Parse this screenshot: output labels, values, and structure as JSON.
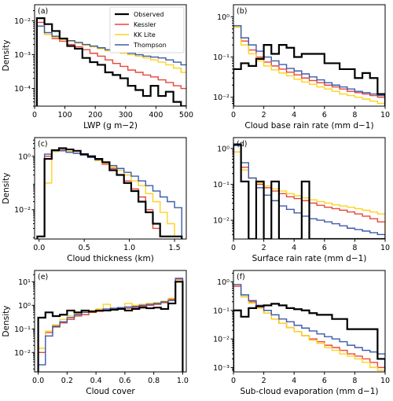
{
  "legend": {
    "entries": [
      {
        "name": "Observed",
        "color": "#000000"
      },
      {
        "name": "Kessler",
        "color": "#e8453c"
      },
      {
        "name": "KK Lite",
        "color": "#ffd21f"
      },
      {
        "name": "Thompson",
        "color": "#3b5bab"
      }
    ],
    "placement": "top-right of panel (a)"
  },
  "chart_data": [
    {
      "panel": "(a)",
      "type": "histogram",
      "xlabel": "LWP (g m−2)",
      "ylabel": "Density",
      "xlim": [
        0,
        500
      ],
      "ylog": true,
      "ylim": [
        3e-05,
        0.03
      ],
      "xticks": [
        0,
        100,
        200,
        300,
        400,
        500
      ],
      "xtick_labels": [
        "0",
        "100",
        "200",
        "300",
        "400",
        "500"
      ],
      "yticks": [
        0.0001,
        0.001,
        0.01
      ],
      "ytick_labels": [
        "10⁻⁴",
        "10⁻³",
        "10⁻²"
      ],
      "bins": [
        20,
        45,
        70,
        95,
        120,
        145,
        170,
        195,
        220,
        245,
        270,
        295,
        320,
        345,
        370,
        395,
        420,
        445,
        470,
        495
      ],
      "series": [
        {
          "name": "Observed",
          "values": [
            0.012,
            0.008,
            0.005,
            0.003,
            0.0018,
            0.0015,
            0.0008,
            0.0006,
            0.0005,
            0.0003,
            0.00025,
            0.0002,
            0.00012,
            9e-05,
            6e-05,
            0.00012,
            6e-05,
            8e-05,
            4e-05,
            3e-05
          ]
        },
        {
          "name": "Kessler",
          "values": [
            0.009,
            0.004,
            0.003,
            0.0025,
            0.002,
            0.0017,
            0.0014,
            0.0011,
            0.0009,
            0.0007,
            0.00055,
            0.00045,
            0.00035,
            0.0003,
            0.00025,
            0.00022,
            0.00018,
            0.00015,
            0.00012,
            0.0001
          ]
        },
        {
          "name": "KK Lite",
          "values": [
            0.007,
            0.004,
            0.0032,
            0.0028,
            0.0025,
            0.0022,
            0.0019,
            0.0017,
            0.0015,
            0.0013,
            0.0012,
            0.0011,
            0.001,
            0.0009,
            0.0008,
            0.0007,
            0.0006,
            0.0005,
            0.0004,
            0.0003
          ]
        },
        {
          "name": "Thompson",
          "values": [
            0.007,
            0.0045,
            0.0035,
            0.003,
            0.0026,
            0.0023,
            0.002,
            0.0018,
            0.0016,
            0.0014,
            0.0013,
            0.0012,
            0.0011,
            0.001,
            0.0009,
            0.00085,
            0.0008,
            0.0007,
            0.0006,
            0.0005
          ]
        }
      ]
    },
    {
      "panel": "(b)",
      "type": "histogram",
      "xlabel": "Cloud base rain rate (mm d−1)",
      "ylabel": "",
      "xlim": [
        0,
        10
      ],
      "ylog": true,
      "ylim": [
        0.006,
        2
      ],
      "xticks": [
        0,
        2,
        4,
        6,
        8,
        10
      ],
      "xtick_labels": [
        "0",
        "2",
        "4",
        "6",
        "8",
        "10"
      ],
      "yticks": [
        0.01,
        0.1,
        1
      ],
      "ytick_labels": [
        "10⁻²",
        "10⁻¹",
        "10⁰"
      ],
      "bins": [
        0.25,
        0.75,
        1.25,
        1.75,
        2.25,
        2.75,
        3.25,
        3.75,
        4.25,
        4.75,
        5.25,
        5.75,
        6.25,
        6.75,
        7.25,
        7.75,
        8.25,
        8.75,
        9.25,
        9.75
      ],
      "series": [
        {
          "name": "Observed",
          "values": [
            0.05,
            0.07,
            0.06,
            0.09,
            0.2,
            0.12,
            0.2,
            0.17,
            0.1,
            0.12,
            0.12,
            0.12,
            0.07,
            0.07,
            0.05,
            0.05,
            0.03,
            0.04,
            0.03,
            0.012
          ]
        },
        {
          "name": "Kessler",
          "values": [
            0.6,
            0.25,
            0.15,
            0.1,
            0.075,
            0.06,
            0.05,
            0.042,
            0.036,
            0.03,
            0.026,
            0.023,
            0.02,
            0.018,
            0.016,
            0.014,
            0.013,
            0.012,
            0.011,
            0.01
          ]
        },
        {
          "name": "KK Lite",
          "values": [
            0.55,
            0.2,
            0.12,
            0.08,
            0.06,
            0.048,
            0.04,
            0.034,
            0.028,
            0.024,
            0.021,
            0.018,
            0.016,
            0.014,
            0.012,
            0.011,
            0.01,
            0.009,
            0.008,
            0.007
          ]
        },
        {
          "name": "Thompson",
          "values": [
            0.6,
            0.3,
            0.2,
            0.14,
            0.1,
            0.08,
            0.065,
            0.052,
            0.045,
            0.038,
            0.032,
            0.027,
            0.023,
            0.02,
            0.018,
            0.016,
            0.014,
            0.013,
            0.012,
            0.011
          ]
        }
      ]
    },
    {
      "panel": "(c)",
      "type": "histogram",
      "xlabel": "Cloud thickness (km)",
      "ylabel": "Density",
      "xlim": [
        -0.05,
        1.63
      ],
      "ylog": true,
      "ylim": [
        0.0008,
        5
      ],
      "xticks": [
        0,
        0.5,
        1.0,
        1.5
      ],
      "xtick_labels": [
        "0.0",
        "0.5",
        "1.0",
        "1.5"
      ],
      "yticks": [
        0.01,
        1
      ],
      "ytick_labels": [
        "10⁻²",
        "10⁰"
      ],
      "bins": [
        0.02,
        0.1,
        0.18,
        0.26,
        0.34,
        0.42,
        0.5,
        0.58,
        0.66,
        0.74,
        0.82,
        0.9,
        0.98,
        1.06,
        1.14,
        1.22,
        1.3,
        1.38,
        1.46,
        1.54
      ],
      "series": [
        {
          "name": "Observed",
          "values": [
            0.001,
            0.8,
            1.7,
            2.0,
            1.8,
            1.6,
            1.2,
            1.0,
            0.8,
            0.6,
            0.3,
            0.2,
            0.1,
            0.05,
            0.02,
            0.008,
            0.003,
            0.001,
            0.001,
            0.001
          ]
        },
        {
          "name": "Kessler",
          "values": [
            0.001,
            1.0,
            1.7,
            1.7,
            1.5,
            1.3,
            1.1,
            0.9,
            0.7,
            0.5,
            0.35,
            0.2,
            0.12,
            0.06,
            0.03,
            0.01,
            0.002,
            0.001,
            0.001,
            0.001
          ]
        },
        {
          "name": "KK Lite",
          "values": [
            0.001,
            0.1,
            1.5,
            1.6,
            1.5,
            1.3,
            1.1,
            0.9,
            0.7,
            0.55,
            0.4,
            0.3,
            0.2,
            0.12,
            0.08,
            0.04,
            0.02,
            0.008,
            0.003,
            0.001
          ]
        },
        {
          "name": "Thompson",
          "values": [
            0.001,
            1.2,
            1.6,
            1.6,
            1.4,
            1.3,
            1.1,
            0.9,
            0.75,
            0.6,
            0.45,
            0.35,
            0.25,
            0.18,
            0.12,
            0.08,
            0.05,
            0.03,
            0.02,
            0.012
          ]
        }
      ]
    },
    {
      "panel": "(d)",
      "type": "histogram",
      "xlabel": "Surface rain rate (mm d−1)",
      "ylabel": "",
      "xlim": [
        0,
        10
      ],
      "ylog": true,
      "ylim": [
        0.003,
        2
      ],
      "xticks": [
        0,
        2,
        4,
        6,
        8,
        10
      ],
      "xtick_labels": [
        "0",
        "2",
        "4",
        "6",
        "8",
        "10"
      ],
      "yticks": [
        0.01,
        0.1,
        1
      ],
      "ytick_labels": [
        "10⁻²",
        "10⁻¹",
        "10⁰"
      ],
      "bins": [
        0.25,
        0.75,
        1.25,
        1.75,
        2.25,
        2.75,
        3.25,
        3.75,
        4.25,
        4.75,
        5.25,
        5.75,
        6.25,
        6.75,
        7.25,
        7.75,
        8.25,
        8.75,
        9.25,
        9.75
      ],
      "series": [
        {
          "name": "Observed",
          "values": [
            1.3,
            0.12,
            0.003,
            0.12,
            0.003,
            0.12,
            0.003,
            0.003,
            0.003,
            0.12,
            0.003,
            0.003,
            0.003,
            0.003,
            0.003,
            0.003,
            0.003,
            0.003,
            0.003,
            0.003
          ]
        },
        {
          "name": "Kessler",
          "values": [
            0.8,
            0.3,
            0.15,
            0.1,
            0.08,
            0.065,
            0.055,
            0.045,
            0.04,
            0.035,
            0.03,
            0.026,
            0.023,
            0.021,
            0.019,
            0.017,
            0.015,
            0.013,
            0.011,
            0.009
          ]
        },
        {
          "name": "KK Lite",
          "values": [
            0.8,
            0.25,
            0.15,
            0.11,
            0.09,
            0.075,
            0.065,
            0.055,
            0.048,
            0.042,
            0.037,
            0.033,
            0.03,
            0.027,
            0.025,
            0.023,
            0.021,
            0.019,
            0.017,
            0.015
          ]
        },
        {
          "name": "Thompson",
          "values": [
            1.2,
            0.4,
            0.15,
            0.08,
            0.05,
            0.035,
            0.025,
            0.02,
            0.016,
            0.013,
            0.011,
            0.01,
            0.009,
            0.008,
            0.007,
            0.006,
            0.0055,
            0.005,
            0.0045,
            0.004
          ]
        }
      ]
    },
    {
      "panel": "(e)",
      "type": "histogram",
      "xlabel": "Cloud cover",
      "ylabel": "Density",
      "xlim": [
        -0.025,
        1.025
      ],
      "ylog": true,
      "ylim": [
        0.0015,
        30
      ],
      "xticks": [
        0,
        0.2,
        0.4,
        0.6,
        0.8,
        1.0
      ],
      "xtick_labels": [
        "0.0",
        "0.2",
        "0.4",
        "0.6",
        "0.8",
        "1.0"
      ],
      "yticks": [
        0.01,
        0.1,
        1,
        10
      ],
      "ytick_labels": [
        "10⁻²",
        "10⁻¹",
        "10⁰",
        "10¹"
      ],
      "bins": [
        0.025,
        0.075,
        0.125,
        0.175,
        0.225,
        0.275,
        0.325,
        0.375,
        0.425,
        0.475,
        0.525,
        0.575,
        0.625,
        0.675,
        0.725,
        0.775,
        0.825,
        0.875,
        0.925,
        0.975
      ],
      "series": [
        {
          "name": "Observed",
          "values": [
            0.3,
            0.5,
            0.35,
            0.4,
            0.6,
            0.5,
            0.6,
            0.55,
            0.6,
            0.6,
            0.65,
            0.7,
            0.6,
            0.7,
            0.8,
            0.75,
            0.8,
            0.7,
            1.2,
            10
          ]
        },
        {
          "name": "Kessler",
          "values": [
            0.01,
            0.07,
            0.12,
            0.18,
            0.25,
            0.35,
            0.4,
            0.5,
            0.55,
            0.6,
            0.65,
            0.7,
            0.75,
            0.8,
            0.9,
            1.0,
            1.1,
            1.3,
            1.8,
            13
          ]
        },
        {
          "name": "KK Lite",
          "values": [
            0.015,
            0.08,
            0.15,
            0.25,
            0.35,
            0.45,
            0.55,
            0.6,
            0.7,
            1.1,
            0.75,
            0.8,
            1.2,
            1.0,
            1.1,
            1.2,
            1.3,
            1.5,
            2.0,
            11
          ]
        },
        {
          "name": "Thompson",
          "values": [
            0.003,
            0.05,
            0.13,
            0.2,
            0.3,
            0.4,
            0.5,
            0.55,
            0.6,
            0.7,
            0.75,
            0.8,
            0.85,
            0.9,
            1.0,
            1.1,
            1.2,
            1.4,
            1.6,
            14
          ]
        }
      ]
    },
    {
      "panel": "(f)",
      "type": "histogram",
      "xlabel": "Sub-cloud evaporation (mm d−1)",
      "ylabel": "",
      "xlim": [
        0,
        10
      ],
      "ylog": true,
      "ylim": [
        0.0007,
        2.5
      ],
      "xticks": [
        0,
        2,
        4,
        6,
        8,
        10
      ],
      "xtick_labels": [
        "0",
        "2",
        "4",
        "6",
        "8",
        "10"
      ],
      "yticks": [
        0.001,
        0.01,
        0.1,
        1
      ],
      "ytick_labels": [
        "10⁻³",
        "10⁻²",
        "10⁻¹",
        "10⁰"
      ],
      "bins": [
        0.25,
        0.75,
        1.25,
        1.75,
        2.25,
        2.75,
        3.25,
        3.75,
        4.25,
        4.75,
        5.25,
        5.75,
        6.25,
        6.75,
        7.25,
        7.75,
        8.25,
        8.75,
        9.25,
        9.75
      ],
      "series": [
        {
          "name": "Observed",
          "values": [
            0.1,
            0.06,
            0.12,
            0.14,
            0.15,
            0.17,
            0.15,
            0.12,
            0.11,
            0.1,
            0.08,
            0.07,
            0.07,
            0.05,
            0.05,
            0.022,
            0.022,
            0.022,
            0.022,
            0.002
          ]
        },
        {
          "name": "Kessler",
          "values": [
            0.7,
            0.3,
            0.2,
            0.13,
            0.08,
            0.05,
            0.035,
            0.025,
            0.018,
            0.013,
            0.01,
            0.008,
            0.006,
            0.005,
            0.004,
            0.003,
            0.0025,
            0.002,
            0.0015,
            0.001
          ]
        },
        {
          "name": "KK Lite",
          "values": [
            0.8,
            0.3,
            0.18,
            0.12,
            0.08,
            0.05,
            0.035,
            0.025,
            0.018,
            0.013,
            0.009,
            0.007,
            0.005,
            0.004,
            0.003,
            0.0025,
            0.002,
            0.0015,
            0.001,
            0.0008
          ]
        },
        {
          "name": "Thompson",
          "values": [
            0.8,
            0.35,
            0.22,
            0.15,
            0.1,
            0.07,
            0.05,
            0.04,
            0.03,
            0.024,
            0.019,
            0.015,
            0.012,
            0.01,
            0.008,
            0.006,
            0.005,
            0.004,
            0.0035,
            0.003
          ]
        }
      ]
    }
  ]
}
